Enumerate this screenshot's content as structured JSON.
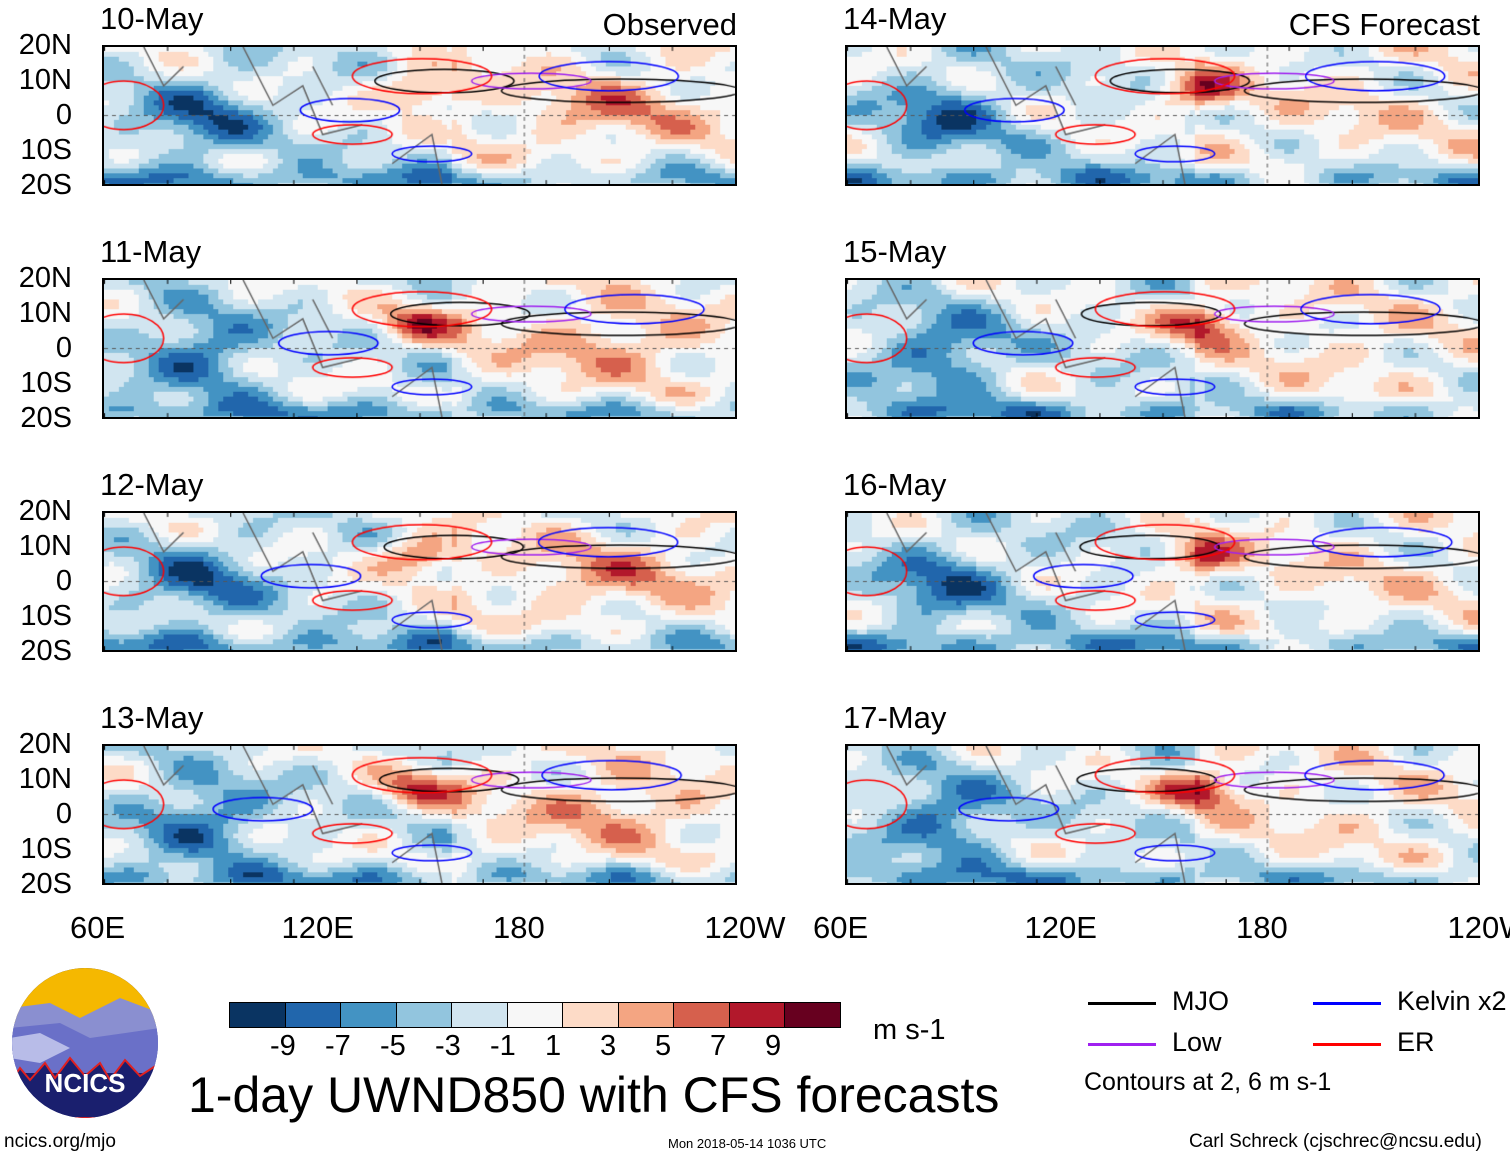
{
  "panels": {
    "left": [
      {
        "date": "10-May",
        "tag": "Observed"
      },
      {
        "date": "11-May"
      },
      {
        "date": "12-May"
      },
      {
        "date": "13-May"
      }
    ],
    "right": [
      {
        "date": "14-May",
        "tag": "CFS Forecast"
      },
      {
        "date": "15-May"
      },
      {
        "date": "16-May"
      },
      {
        "date": "17-May"
      }
    ]
  },
  "lat_labels": [
    "20N",
    "10N",
    "0",
    "10S",
    "20S"
  ],
  "lon_labels": [
    "60E",
    "120E",
    "180",
    "120W"
  ],
  "colorbar": {
    "colors": [
      "#0a3462",
      "#2166ac",
      "#4393c3",
      "#92c5de",
      "#d1e5f0",
      "#f7f7f7",
      "#fddbc7",
      "#f4a582",
      "#d6604d",
      "#b2182b",
      "#67001f"
    ],
    "ticks": [
      "-9",
      "-7",
      "-5",
      "-3",
      "-1",
      "1",
      "3",
      "5",
      "7",
      "9"
    ],
    "units": "m s-1"
  },
  "legend": {
    "items": [
      {
        "label": "MJO",
        "color": "#000000"
      },
      {
        "label": "Kelvin x2",
        "color": "#0000ff"
      },
      {
        "label": "Low",
        "color": "#a020f0"
      },
      {
        "label": "ER",
        "color": "#ff0000"
      }
    ],
    "note": "Contours at 2, 6 m s-1"
  },
  "title": "1-day UWND850 with CFS forecasts",
  "logo_text": "NCICS",
  "footer": {
    "url": "ncics.org/mjo",
    "timestamp": "Mon 2018-05-14 1036 UTC",
    "author": "Carl Schreck (cjschrec@ncsu.edu)"
  }
}
